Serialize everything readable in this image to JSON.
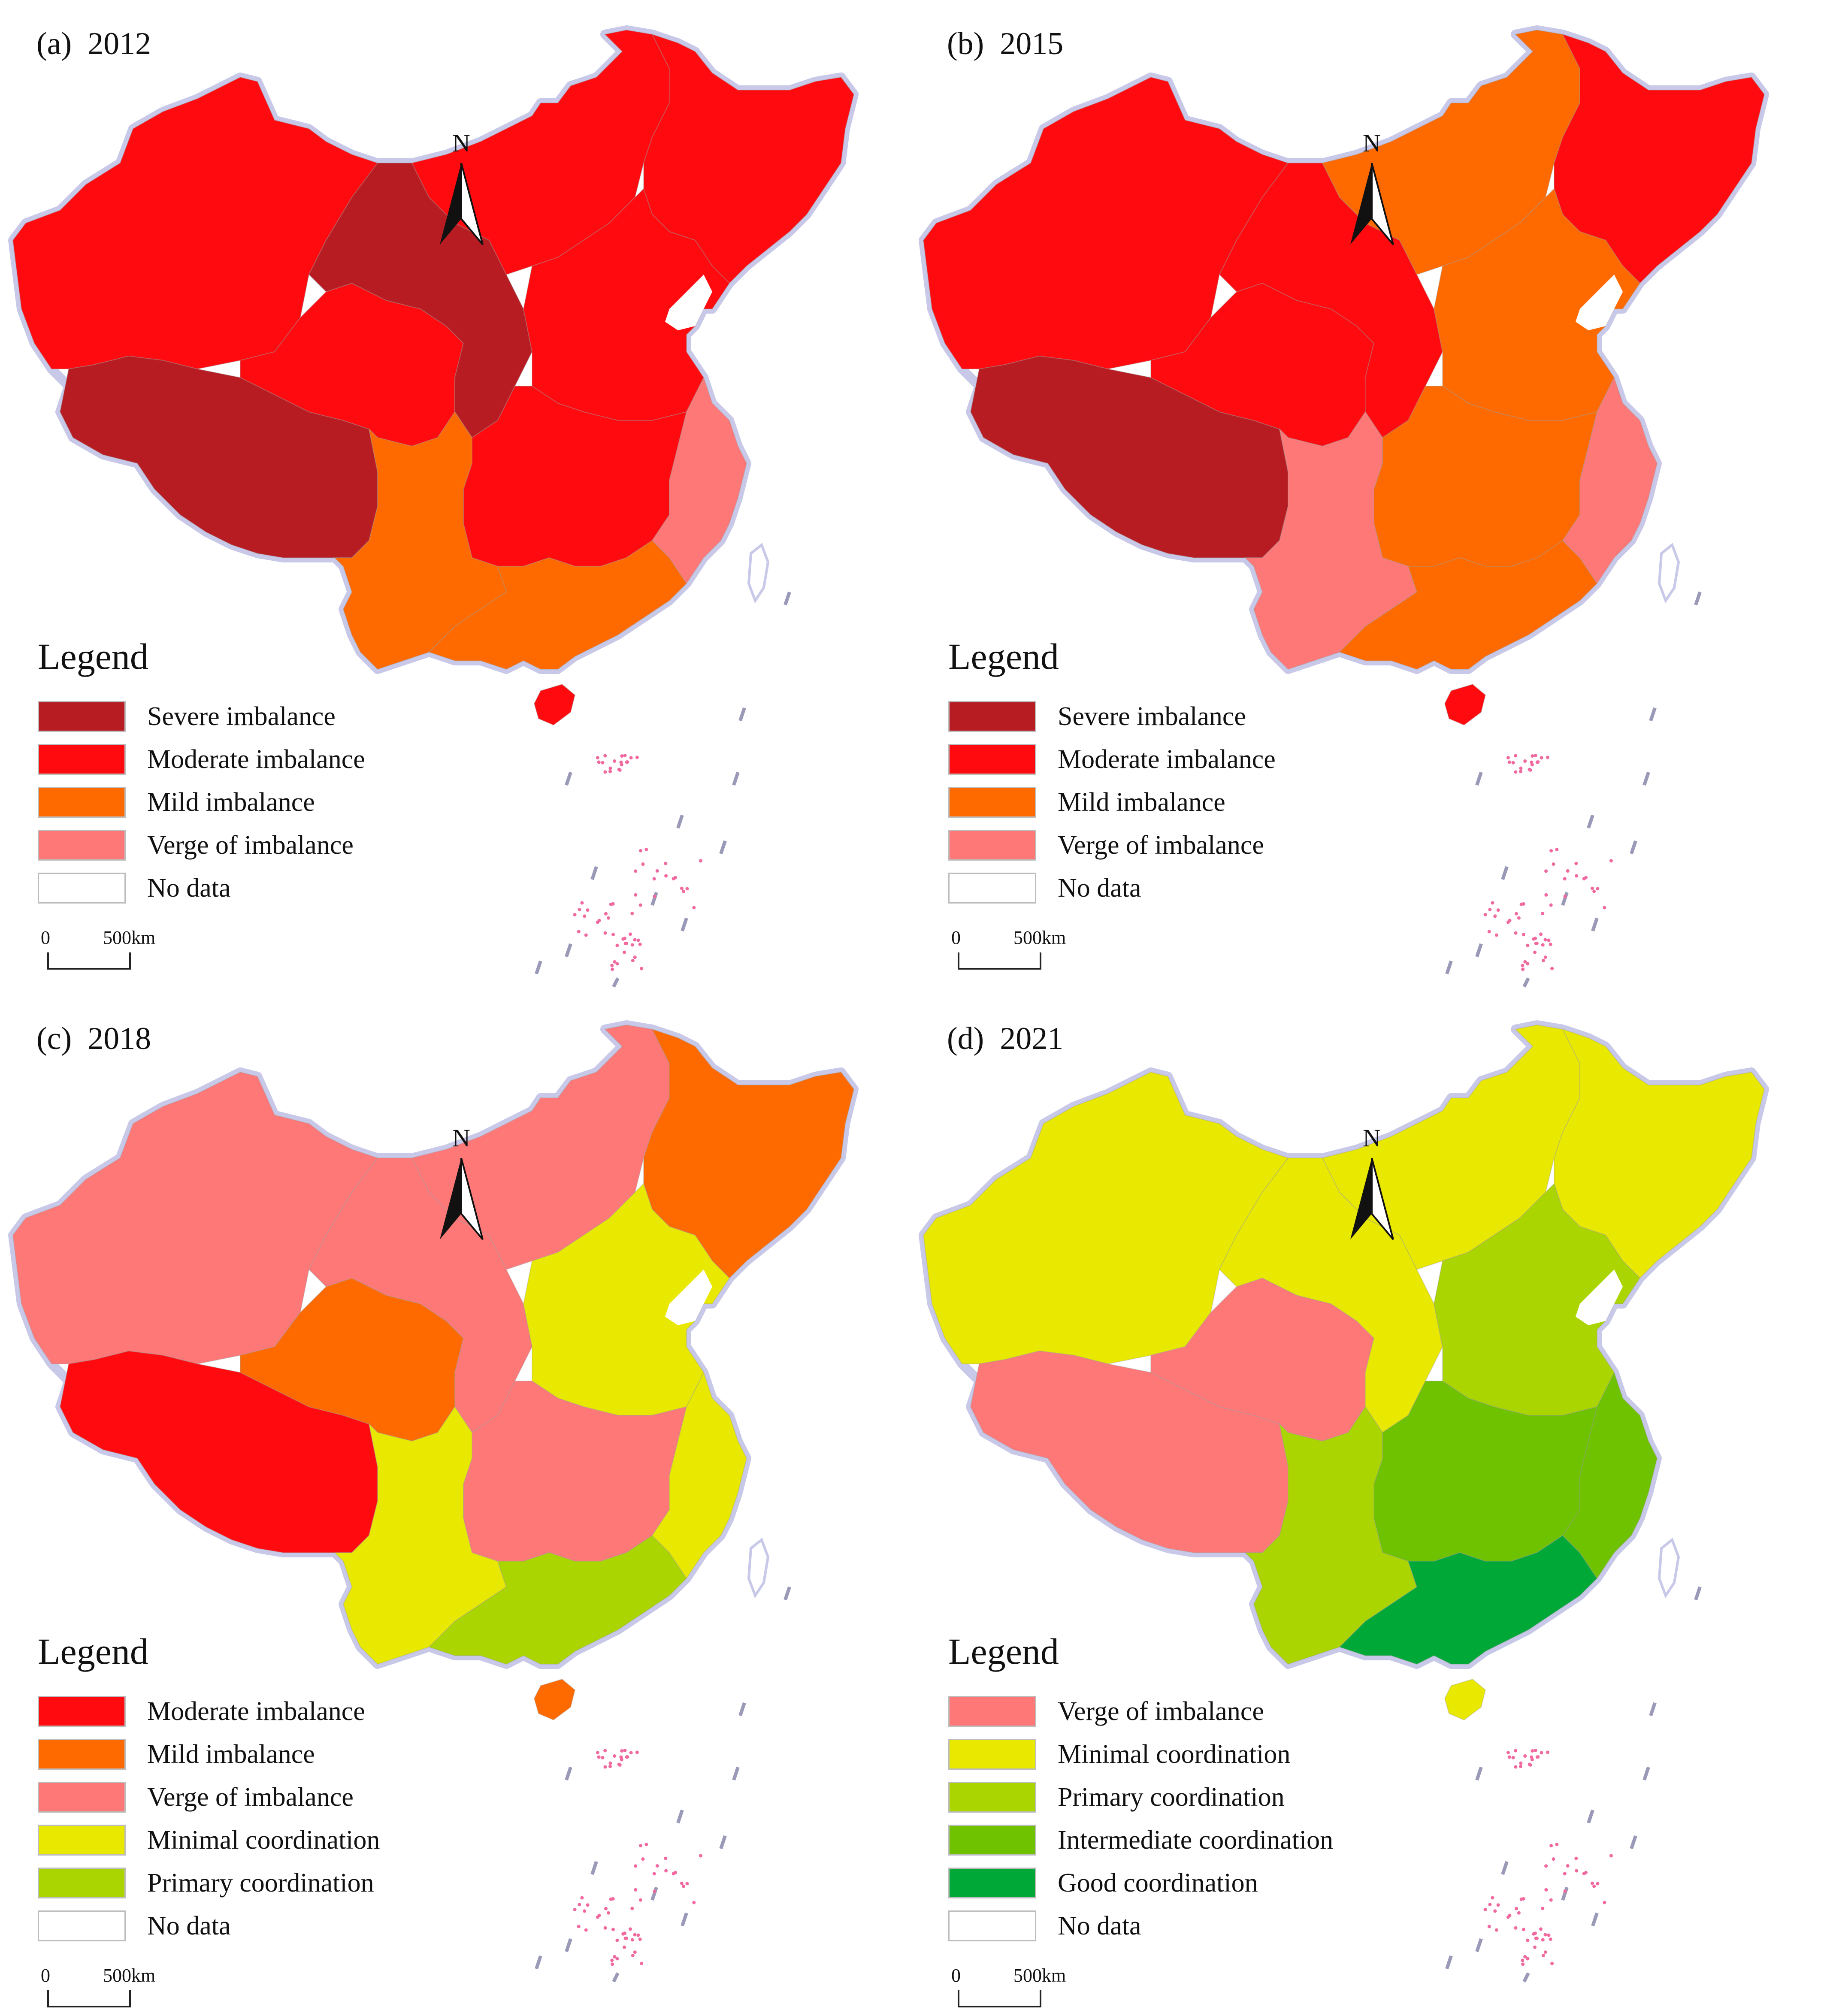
{
  "colors": {
    "severe_imbalance": "#b71c22",
    "moderate_imbalance": "#fe0a0f",
    "mild_imbalance": "#fe6a00",
    "verge_of_imbalance": "#fe7878",
    "minimal_coordination": "#e8e800",
    "primary_coordination": "#aad500",
    "intermediate_coordination": "#6ec200",
    "good_coordination": "#00a838",
    "no_data": "#ffffff",
    "coast_halo": "#c8c8e8",
    "island_dots": "#f06aa0"
  },
  "north_arrow": "N",
  "scale_bar": {
    "zero": "0",
    "distance": "500km"
  },
  "panels": [
    {
      "id": "a",
      "title": "(a)  2012",
      "region_classes": {
        "west_xinjiang": "moderate_imbalance",
        "tibet": "severe_imbalance",
        "qinghai": "moderate_imbalance",
        "gansu": "severe_imbalance",
        "inner_mongolia": "moderate_imbalance",
        "northeast": "moderate_imbalance",
        "north_china": "moderate_imbalance",
        "central": "moderate_imbalance",
        "southwest": "mild_imbalance",
        "south": "mild_imbalance",
        "east_coast": "verge_of_imbalance",
        "hainan": "moderate_imbalance"
      },
      "legend": {
        "title": "Legend",
        "items": [
          {
            "label": "Severe imbalance",
            "color": "severe_imbalance"
          },
          {
            "label": "Moderate imbalance",
            "color": "moderate_imbalance"
          },
          {
            "label": "Mild imbalance",
            "color": "mild_imbalance"
          },
          {
            "label": "Verge of imbalance",
            "color": "verge_of_imbalance"
          },
          {
            "label": "No data",
            "color": "no_data"
          }
        ]
      }
    },
    {
      "id": "b",
      "title": "(b)  2015",
      "region_classes": {
        "west_xinjiang": "moderate_imbalance",
        "tibet": "severe_imbalance",
        "qinghai": "moderate_imbalance",
        "gansu": "moderate_imbalance",
        "inner_mongolia": "mild_imbalance",
        "northeast": "moderate_imbalance",
        "north_china": "mild_imbalance",
        "central": "mild_imbalance",
        "southwest": "verge_of_imbalance",
        "south": "mild_imbalance",
        "east_coast": "verge_of_imbalance",
        "hainan": "moderate_imbalance"
      },
      "legend": {
        "title": "Legend",
        "items": [
          {
            "label": "Severe imbalance",
            "color": "severe_imbalance"
          },
          {
            "label": "Moderate imbalance",
            "color": "moderate_imbalance"
          },
          {
            "label": "Mild imbalance",
            "color": "mild_imbalance"
          },
          {
            "label": "Verge of imbalance",
            "color": "verge_of_imbalance"
          },
          {
            "label": "No data",
            "color": "no_data"
          }
        ]
      }
    },
    {
      "id": "c",
      "title": "(c)  2018",
      "region_classes": {
        "west_xinjiang": "verge_of_imbalance",
        "tibet": "moderate_imbalance",
        "qinghai": "mild_imbalance",
        "gansu": "verge_of_imbalance",
        "inner_mongolia": "verge_of_imbalance",
        "northeast": "mild_imbalance",
        "north_china": "minimal_coordination",
        "central": "verge_of_imbalance",
        "southwest": "minimal_coordination",
        "south": "primary_coordination",
        "east_coast": "minimal_coordination",
        "hainan": "mild_imbalance"
      },
      "legend": {
        "title": "Legend",
        "items": [
          {
            "label": "Moderate imbalance",
            "color": "moderate_imbalance"
          },
          {
            "label": "Mild imbalance",
            "color": "mild_imbalance"
          },
          {
            "label": "Verge of imbalance",
            "color": "verge_of_imbalance"
          },
          {
            "label": "Minimal coordination",
            "color": "minimal_coordination"
          },
          {
            "label": "Primary coordination",
            "color": "primary_coordination"
          },
          {
            "label": "No data",
            "color": "no_data"
          }
        ]
      }
    },
    {
      "id": "d",
      "title": "(d)  2021",
      "region_classes": {
        "west_xinjiang": "minimal_coordination",
        "tibet": "verge_of_imbalance",
        "qinghai": "verge_of_imbalance",
        "gansu": "minimal_coordination",
        "inner_mongolia": "minimal_coordination",
        "northeast": "minimal_coordination",
        "north_china": "primary_coordination",
        "central": "intermediate_coordination",
        "southwest": "primary_coordination",
        "south": "good_coordination",
        "east_coast": "intermediate_coordination",
        "hainan": "minimal_coordination"
      },
      "legend": {
        "title": "Legend",
        "items": [
          {
            "label": "Verge of imbalance",
            "color": "verge_of_imbalance"
          },
          {
            "label": "Minimal coordination",
            "color": "minimal_coordination"
          },
          {
            "label": "Primary coordination",
            "color": "primary_coordination"
          },
          {
            "label": "Intermediate coordination",
            "color": "intermediate_coordination"
          },
          {
            "label": "Good coordination",
            "color": "good_coordination"
          },
          {
            "label": "No data",
            "color": "no_data"
          }
        ]
      }
    }
  ]
}
